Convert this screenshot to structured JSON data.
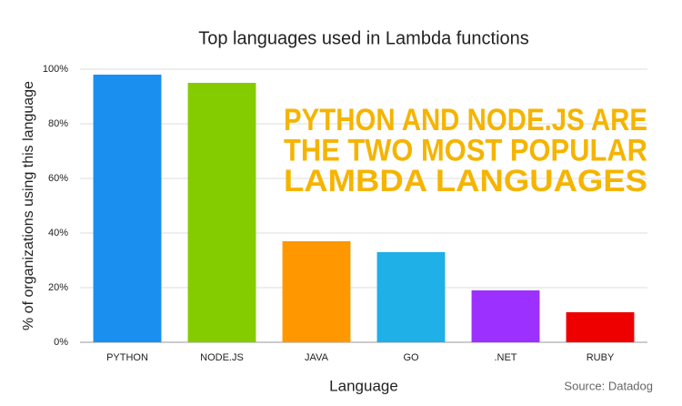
{
  "chart_data": {
    "type": "bar",
    "title": "Top languages used in Lambda functions",
    "categories": [
      "PYTHON",
      "NODE.JS",
      "JAVA",
      "GO",
      ".NET",
      "RUBY"
    ],
    "values": [
      98,
      95,
      37,
      33,
      19,
      11
    ],
    "colors": [
      "#1a8ff0",
      "#84cc00",
      "#ff9800",
      "#1eb0e6",
      "#9b30ff",
      "#ee0000"
    ],
    "ylim": [
      0,
      100
    ],
    "yticks": [
      {
        "value": 0,
        "label": "0%"
      },
      {
        "value": 20,
        "label": "20%"
      },
      {
        "value": 40,
        "label": "40%"
      },
      {
        "value": 60,
        "label": "60%"
      },
      {
        "value": 80,
        "label": "80%"
      },
      {
        "value": 100,
        "label": "100%"
      }
    ],
    "grid": true,
    "xlabel": "Language",
    "ylabel": "% of organizations using this language",
    "annotation": [
      "PYTHON AND NODE.JS ARE",
      "THE TWO MOST POPULAR",
      "LAMBDA LANGUAGES"
    ],
    "annotation_color": "#f5b400",
    "source": "Source: Datadog"
  }
}
